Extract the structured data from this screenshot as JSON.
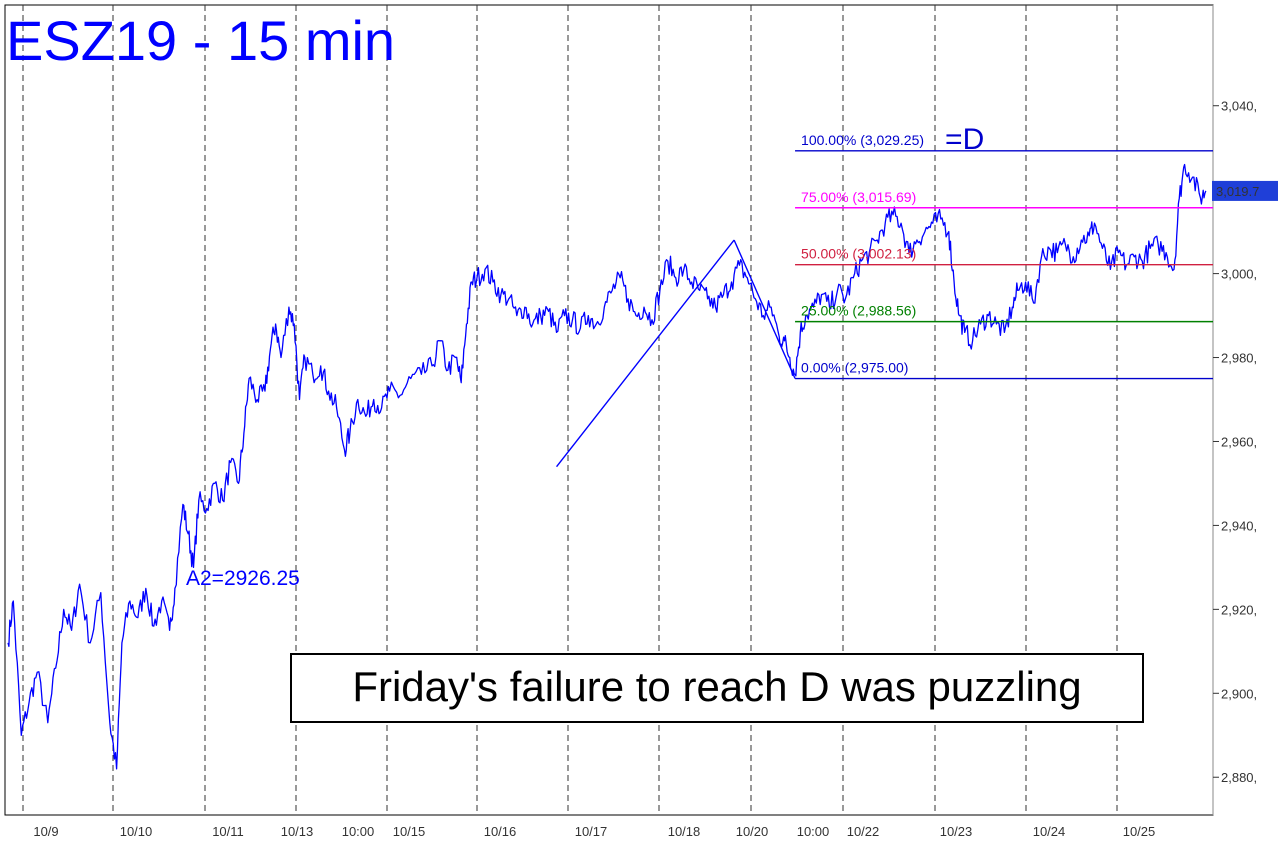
{
  "chart_data": {
    "type": "line",
    "title": "ESZ19 - 15 min",
    "x_tick_labels": [
      "10/9",
      "10/10",
      "10/11",
      "10/13",
      "10:00",
      "10/15",
      "10/16",
      "10/17",
      "10/18",
      "10/20",
      "10:00",
      "10/22",
      "10/23",
      "10/24",
      "10/25"
    ],
    "y_tick_labels": [
      "2,880",
      "2,900",
      "2,920",
      "2,940",
      "2,960",
      "2,980",
      "3,000",
      "3,020",
      "3,040"
    ],
    "y_ticks": [
      2880,
      2900,
      2920,
      2940,
      2960,
      2980,
      3000,
      3020,
      3040
    ],
    "ylim": [
      2871,
      3064
    ],
    "last_price_label": "3,019.7",
    "last_price": 3019.7,
    "colors": {
      "price": "#0000ff",
      "fib_100": "#0000cc",
      "fib_75": "#ff00ff",
      "fib_50": "#d02040",
      "fib_25": "#008000",
      "fib_0": "#0000cc"
    },
    "fib_levels": [
      {
        "label": "100.00% (3,029.25)",
        "value": 3029.25,
        "key": "fib_100"
      },
      {
        "label": "75.00% (3,015.69)",
        "value": 3015.69,
        "key": "fib_75"
      },
      {
        "label": "50.00% (3,002.13)",
        "value": 3002.13,
        "key": "fib_50"
      },
      {
        "label": "25.00% (2,988.56)",
        "value": 2988.56,
        "key": "fib_25"
      },
      {
        "label": "0.00% (2,975.00)",
        "value": 2975.0,
        "key": "fib_0"
      }
    ],
    "pattern_points": [
      {
        "x": 10.35,
        "y": 2954
      },
      {
        "x": 13.7,
        "y": 3008
      },
      {
        "x": 14.85,
        "y": 2975
      }
    ],
    "d_label": "=D",
    "a2_label": "A2=2926.25",
    "annotation": "Friday's failure to reach D was puzzling",
    "series": [
      {
        "values": [
          [
            0.0,
            2912
          ],
          [
            0.1,
            2922
          ],
          [
            0.25,
            2890
          ],
          [
            0.4,
            2898
          ],
          [
            0.55,
            2905
          ],
          [
            0.75,
            2893
          ],
          [
            0.9,
            2906
          ],
          [
            1.05,
            2920
          ],
          [
            1.2,
            2915
          ],
          [
            1.35,
            2926
          ],
          [
            1.55,
            2912
          ],
          [
            1.75,
            2924
          ],
          [
            1.92,
            2893
          ],
          [
            2.05,
            2882
          ],
          [
            2.15,
            2912
          ],
          [
            2.3,
            2922
          ],
          [
            2.45,
            2918
          ],
          [
            2.6,
            2925
          ],
          [
            2.75,
            2916
          ],
          [
            2.9,
            2922
          ],
          [
            3.05,
            2915
          ],
          [
            3.15,
            2925
          ],
          [
            3.3,
            2945
          ],
          [
            3.4,
            2938
          ],
          [
            3.5,
            2930
          ],
          [
            3.6,
            2946
          ],
          [
            3.75,
            2944
          ],
          [
            3.9,
            2950
          ],
          [
            4.05,
            2946
          ],
          [
            4.2,
            2955
          ],
          [
            4.35,
            2950
          ],
          [
            4.45,
            2962
          ],
          [
            4.55,
            2975
          ],
          [
            4.7,
            2970
          ],
          [
            4.85,
            2972
          ],
          [
            4.95,
            2982
          ],
          [
            5.05,
            2988
          ],
          [
            5.15,
            2980
          ],
          [
            5.3,
            2992
          ],
          [
            5.4,
            2988
          ],
          [
            5.5,
            2970
          ],
          [
            5.6,
            2980
          ],
          [
            5.75,
            2976
          ],
          [
            5.9,
            2978
          ],
          [
            6.05,
            2972
          ],
          [
            6.2,
            2968
          ],
          [
            6.35,
            2958
          ],
          [
            6.45,
            2962
          ],
          [
            6.6,
            2970
          ],
          [
            6.75,
            2966
          ],
          [
            6.9,
            2970
          ],
          [
            7.05,
            2968
          ],
          [
            7.2,
            2972
          ],
          [
            7.4,
            2971
          ],
          [
            7.6,
            2975
          ],
          [
            7.8,
            2976
          ],
          [
            8.0,
            2978
          ],
          [
            8.15,
            2984
          ],
          [
            8.3,
            2977
          ],
          [
            8.45,
            2980
          ],
          [
            8.55,
            2974
          ],
          [
            8.65,
            2988
          ],
          [
            8.75,
            2998
          ],
          [
            8.85,
            2999
          ],
          [
            9.0,
            3001
          ],
          [
            9.15,
            2998
          ],
          [
            9.3,
            2995
          ],
          [
            9.45,
            2994
          ],
          [
            9.6,
            2990
          ],
          [
            9.75,
            2992
          ],
          [
            9.9,
            2988
          ],
          [
            10.05,
            2990
          ],
          [
            10.2,
            2991
          ],
          [
            10.35,
            2986
          ],
          [
            10.5,
            2990
          ],
          [
            10.65,
            2989
          ],
          [
            10.8,
            2987
          ],
          [
            10.95,
            2990
          ],
          [
            11.1,
            2988
          ],
          [
            11.25,
            2992
          ],
          [
            11.4,
            2996
          ],
          [
            11.55,
            2999
          ],
          [
            11.7,
            2994
          ],
          [
            11.85,
            2990
          ],
          [
            12.0,
            2992
          ],
          [
            12.15,
            2989
          ],
          [
            12.3,
            2996
          ],
          [
            12.45,
            3003
          ],
          [
            12.6,
            2999
          ],
          [
            12.75,
            3001
          ],
          [
            12.9,
            2998
          ],
          [
            13.05,
            2996
          ],
          [
            13.2,
            2994
          ],
          [
            13.35,
            2992
          ],
          [
            13.5,
            2995
          ],
          [
            13.65,
            2998
          ],
          [
            13.8,
            3002
          ],
          [
            13.95,
            2999
          ],
          [
            14.1,
            2994
          ],
          [
            14.25,
            2990
          ],
          [
            14.4,
            2992
          ],
          [
            14.55,
            2985
          ],
          [
            14.65,
            2984
          ],
          [
            14.75,
            2980
          ],
          [
            14.85,
            2976
          ],
          [
            14.95,
            2986
          ],
          [
            15.05,
            2990
          ],
          [
            15.2,
            2992
          ],
          [
            15.35,
            2995
          ],
          [
            15.5,
            2992
          ],
          [
            15.65,
            2996
          ],
          [
            15.8,
            2994
          ],
          [
            15.95,
            2999
          ],
          [
            16.1,
            3003
          ],
          [
            16.25,
            3005
          ],
          [
            16.4,
            3008
          ],
          [
            16.55,
            3012
          ],
          [
            16.7,
            3014
          ],
          [
            16.85,
            3012
          ],
          [
            17.0,
            3005
          ],
          [
            17.15,
            3008
          ],
          [
            17.3,
            3010
          ],
          [
            17.45,
            3012
          ],
          [
            17.6,
            3013
          ],
          [
            17.75,
            3010
          ],
          [
            17.85,
            2998
          ],
          [
            17.95,
            2990
          ],
          [
            18.05,
            2986
          ],
          [
            18.2,
            2984
          ],
          [
            18.35,
            2988
          ],
          [
            18.5,
            2990
          ],
          [
            18.65,
            2988
          ],
          [
            18.8,
            2986
          ],
          [
            18.95,
            2992
          ],
          [
            19.05,
            2996
          ],
          [
            19.2,
            2998
          ],
          [
            19.35,
            2993
          ],
          [
            19.5,
            3004
          ],
          [
            19.65,
            3006
          ],
          [
            19.8,
            3005
          ],
          [
            19.95,
            3007
          ],
          [
            20.1,
            3004
          ],
          [
            20.25,
            3008
          ],
          [
            20.4,
            3009
          ],
          [
            20.5,
            3012
          ],
          [
            20.65,
            3006
          ],
          [
            20.8,
            3001
          ],
          [
            20.95,
            3005
          ],
          [
            21.1,
            3002
          ],
          [
            21.25,
            3004
          ],
          [
            21.4,
            3003
          ],
          [
            21.55,
            3006
          ],
          [
            21.7,
            3007
          ],
          [
            21.85,
            3005
          ],
          [
            22.0,
            3001
          ],
          [
            22.1,
            3018
          ],
          [
            22.2,
            3026
          ],
          [
            22.35,
            3023
          ],
          [
            22.5,
            3018
          ],
          [
            22.6,
            3019.7
          ]
        ]
      }
    ]
  }
}
